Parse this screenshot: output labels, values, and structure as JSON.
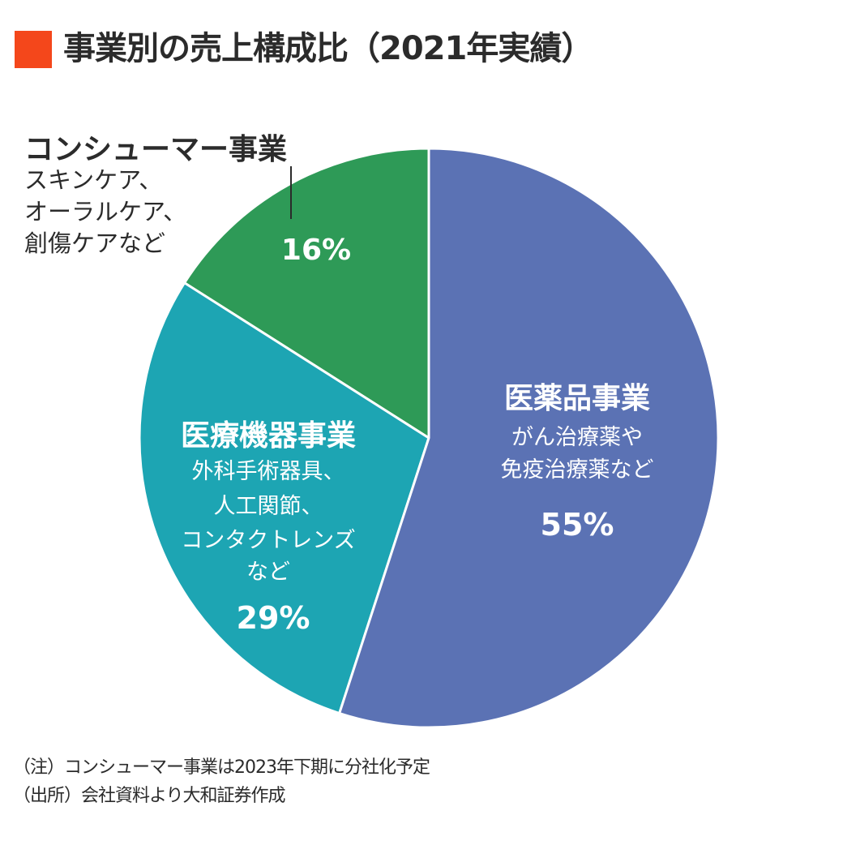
{
  "chart_data": {
    "type": "pie",
    "title": "事業別の売上構成比（2021年実績）",
    "start_angle": "12 o'clock",
    "direction": "clockwise",
    "slices": [
      {
        "name": "医薬品事業",
        "value": 55,
        "label": "55%",
        "description": [
          "がん治療薬や",
          "免疫治療薬など"
        ],
        "color": "#5b72b4"
      },
      {
        "name": "医療機器事業",
        "value": 29,
        "label": "29%",
        "description": [
          "外科手術器具、",
          "人工関節、",
          "コンタクトレンズ",
          "など"
        ],
        "color": "#1da5b3"
      },
      {
        "name": "コンシューマー事業",
        "value": 16,
        "label": "16%",
        "description": [
          "スキンケア、",
          "オーラルケア、",
          "創傷ケアなど"
        ],
        "color": "#2e9a57"
      }
    ]
  },
  "title_accent_color": "#f4471b",
  "notes": [
    "（注）コンシューマー事業は2023年下期に分社化予定",
    "（出所）会社資料より大和証券作成"
  ]
}
